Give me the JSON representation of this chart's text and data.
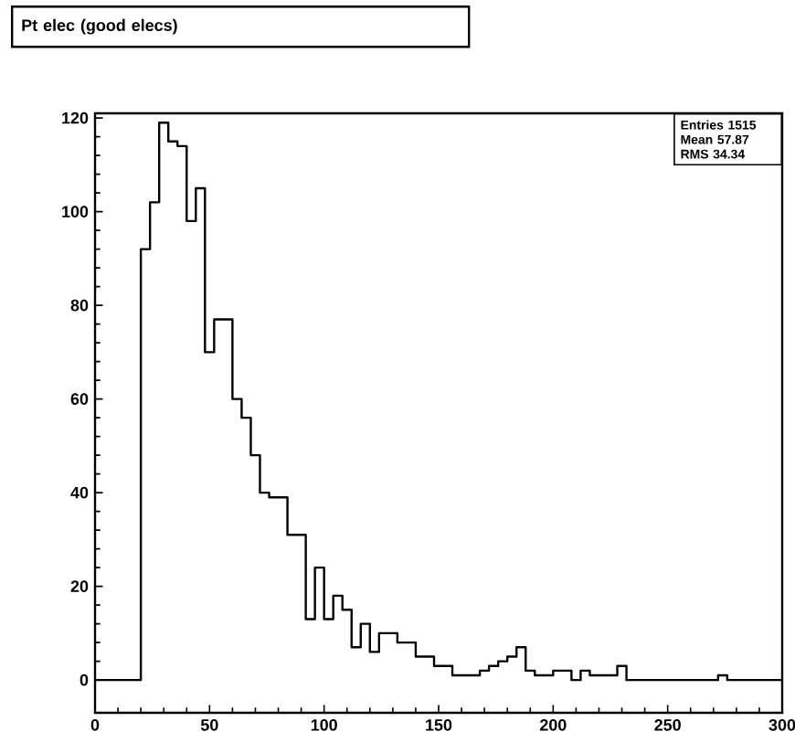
{
  "chart_data": {
    "type": "histogram",
    "title": "Pt elec     (good elecs)",
    "bins": [
      0,
      4,
      8,
      12,
      16,
      20,
      24,
      28,
      32,
      36,
      40,
      44,
      48,
      52,
      56,
      60,
      64,
      68,
      72,
      76,
      80,
      84,
      88,
      92,
      96,
      100,
      104,
      108,
      112,
      116,
      120,
      124,
      128,
      132,
      136,
      140,
      144,
      148,
      152,
      156,
      160,
      164,
      168,
      172,
      176,
      180,
      184,
      188,
      192,
      196,
      200,
      204,
      208,
      212,
      216,
      220,
      224,
      228,
      232,
      236,
      240,
      244,
      248,
      252,
      256,
      260,
      264,
      268,
      272,
      276,
      280,
      284,
      288,
      292,
      296,
      300
    ],
    "values": [
      0,
      0,
      0,
      0,
      0,
      92,
      102,
      119,
      115,
      114,
      98,
      105,
      70,
      77,
      77,
      60,
      56,
      48,
      40,
      39,
      39,
      31,
      31,
      13,
      24,
      13,
      18,
      15,
      7,
      12,
      6,
      10,
      10,
      8,
      8,
      5,
      5,
      3,
      3,
      1,
      1,
      1,
      2,
      3,
      4,
      5,
      7,
      2,
      1,
      1,
      2,
      2,
      0,
      2,
      1,
      1,
      1,
      3,
      0,
      0,
      0,
      0,
      0,
      0,
      0,
      0,
      0,
      0,
      1,
      0,
      0,
      0,
      0,
      0,
      0
    ],
    "color": "#000000",
    "xlim": [
      0,
      300
    ],
    "xticks": [
      0,
      50,
      100,
      150,
      200,
      250,
      300
    ],
    "ylim": [
      -7,
      121
    ],
    "yticks": [
      0,
      20,
      40,
      60,
      80,
      100,
      120
    ],
    "annotations": [
      "Entries  1515",
      "Mean  57.87",
      "RMS  34.34"
    ]
  }
}
